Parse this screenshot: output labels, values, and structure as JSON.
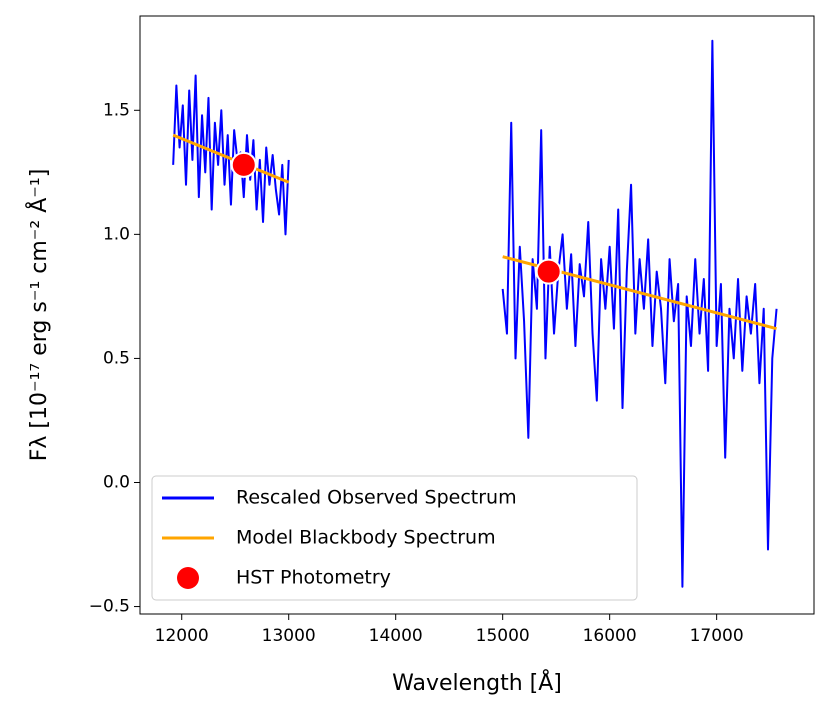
{
  "chart_data": {
    "type": "line",
    "xlabel": "Wavelength [Å]",
    "ylabel": "Fλ [10⁻¹⁷ erg s⁻¹ cm⁻² Å⁻¹]",
    "xlim": [
      11610,
      17910
    ],
    "ylim": [
      -0.53,
      1.88
    ],
    "xticks": [
      12000,
      13000,
      14000,
      15000,
      16000,
      17000
    ],
    "yticks": [
      {
        "value": -0.5,
        "label": "−0.5"
      },
      {
        "value": 0,
        "label": "0.0"
      },
      0.5,
      {
        "value": 1,
        "label": "1.0"
      },
      1.5
    ],
    "legend": "lower left",
    "series": [
      {
        "name": "Rescaled Observed Spectrum",
        "type": "line",
        "color": "#0000ff",
        "x": [
          11920,
          11950,
          11980,
          12010,
          12040,
          12070,
          12100,
          12130,
          12160,
          12190,
          12220,
          12250,
          12280,
          12310,
          12340,
          12370,
          12400,
          12430,
          12460,
          12490,
          12520,
          12550,
          12580,
          12610,
          12640,
          12670,
          12700,
          12730,
          12760,
          12790,
          12820,
          12850,
          12880,
          12910,
          12940,
          12970,
          13000,
          null,
          15000,
          15040,
          15080,
          15120,
          15160,
          15200,
          15240,
          15280,
          15320,
          15360,
          15400,
          15440,
          15480,
          15520,
          15560,
          15600,
          15640,
          15680,
          15720,
          15760,
          15800,
          15840,
          15880,
          15920,
          15960,
          16000,
          16040,
          16080,
          16120,
          16160,
          16200,
          16240,
          16280,
          16320,
          16360,
          16400,
          16440,
          16480,
          16520,
          16560,
          16600,
          16640,
          16680,
          16720,
          16760,
          16800,
          16840,
          16880,
          16920,
          16960,
          17000,
          17040,
          17080,
          17120,
          17160,
          17200,
          17240,
          17280,
          17320,
          17360,
          17400,
          17440,
          17480,
          17520,
          17560
        ],
        "values": [
          1.28,
          1.6,
          1.35,
          1.52,
          1.2,
          1.58,
          1.3,
          1.64,
          1.15,
          1.48,
          1.25,
          1.55,
          1.1,
          1.45,
          1.28,
          1.5,
          1.2,
          1.4,
          1.12,
          1.42,
          1.3,
          1.33,
          1.15,
          1.4,
          1.22,
          1.38,
          1.1,
          1.3,
          1.05,
          1.35,
          1.2,
          1.32,
          1.18,
          1.08,
          1.28,
          1.0,
          1.3,
          null,
          0.78,
          0.6,
          1.45,
          0.5,
          0.95,
          0.65,
          0.18,
          0.9,
          0.7,
          1.42,
          0.5,
          0.95,
          0.6,
          0.85,
          1.0,
          0.7,
          0.92,
          0.55,
          0.88,
          0.75,
          1.05,
          0.6,
          0.33,
          0.9,
          0.7,
          0.95,
          0.62,
          1.1,
          0.3,
          0.85,
          1.2,
          0.6,
          0.9,
          0.7,
          0.98,
          0.55,
          0.85,
          0.7,
          0.4,
          0.9,
          0.65,
          0.8,
          -0.42,
          0.75,
          0.55,
          0.9,
          0.6,
          0.82,
          0.45,
          1.78,
          0.55,
          0.8,
          0.1,
          0.7,
          0.5,
          0.82,
          0.45,
          0.75,
          0.6,
          0.8,
          0.4,
          0.7,
          -0.27,
          0.5,
          0.7
        ]
      },
      {
        "name": "Model Blackbody Spectrum",
        "type": "line",
        "color": "#ffa500",
        "x": [
          11920,
          13000,
          null,
          15000,
          17560
        ],
        "values": [
          1.4,
          1.21,
          null,
          0.91,
          0.62
        ]
      },
      {
        "name": "HST Photometry",
        "type": "scatter",
        "color": "#ff0000",
        "x": [
          12580,
          15430
        ],
        "values": [
          1.28,
          0.85
        ]
      }
    ]
  }
}
